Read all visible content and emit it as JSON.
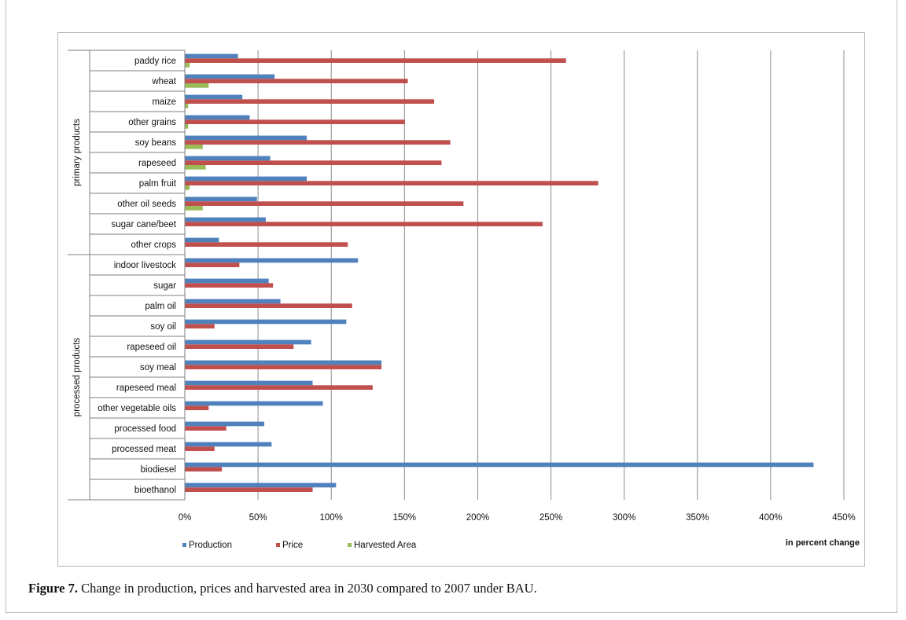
{
  "caption": {
    "label": "Figure 7.",
    "text": " Change in production, prices and harvested area in 2030 compared to 2007 under BAU."
  },
  "colors": {
    "production": "#4f81bd",
    "price": "#c0504d",
    "harvested_area": "#9bbb59",
    "grid": "#8c8c8c"
  },
  "chart_data": {
    "type": "bar",
    "orientation": "horizontal",
    "xlabel": "in percent change",
    "xlim": [
      0,
      450
    ],
    "xticks": [
      "0%",
      "50%",
      "100%",
      "150%",
      "200%",
      "250%",
      "300%",
      "350%",
      "400%",
      "450%"
    ],
    "grid": true,
    "legend_position": "bottom",
    "groups": [
      {
        "name": "primary products",
        "categories": [
          "paddy rice",
          "wheat",
          "maize",
          "other grains",
          "soy beans",
          "rapeseed",
          "palm fruit",
          "other oil seeds",
          "sugar cane/beet",
          "other crops"
        ]
      },
      {
        "name": "processed products",
        "categories": [
          "indoor livestock",
          "sugar",
          "palm oil",
          "soy oil",
          "rapeseed oil",
          "soy meal",
          "rapeseed meal",
          "other vegetable oils",
          "processed food",
          "processed meat",
          "biodiesel",
          "bioethanol"
        ]
      }
    ],
    "categories": [
      "paddy rice",
      "wheat",
      "maize",
      "other grains",
      "soy beans",
      "rapeseed",
      "palm fruit",
      "other oil seeds",
      "sugar cane/beet",
      "other crops",
      "indoor livestock",
      "sugar",
      "palm oil",
      "soy oil",
      "rapeseed oil",
      "soy meal",
      "rapeseed meal",
      "other vegetable oils",
      "processed food",
      "processed meat",
      "biodiesel",
      "bioethanol"
    ],
    "series": [
      {
        "name": "Production",
        "values": [
          36,
          61,
          39,
          44,
          83,
          58,
          83,
          49,
          55,
          23,
          118,
          57,
          65,
          110,
          86,
          134,
          87,
          94,
          54,
          59,
          429,
          103
        ]
      },
      {
        "name": "Price",
        "values": [
          260,
          152,
          170,
          150,
          181,
          175,
          282,
          190,
          244,
          111,
          37,
          60,
          114,
          20,
          74,
          134,
          128,
          16,
          28,
          20,
          25,
          87
        ]
      },
      {
        "name": "Harvested Area",
        "values": [
          3,
          16,
          2,
          2,
          12,
          14,
          3,
          12,
          0,
          0,
          0,
          0,
          0,
          0,
          0,
          0,
          0,
          0,
          0,
          0,
          0,
          0
        ]
      }
    ]
  }
}
